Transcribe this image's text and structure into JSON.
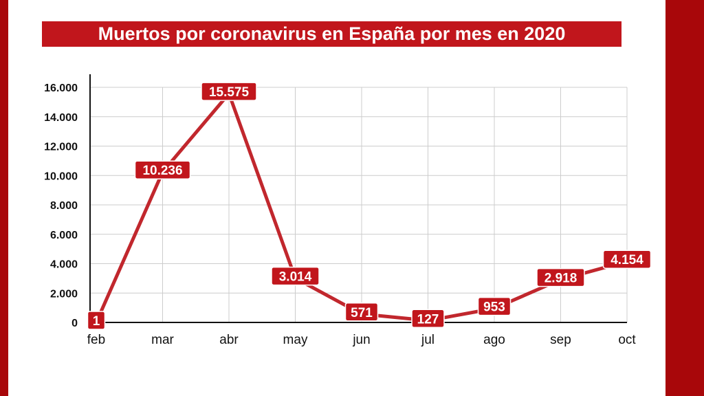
{
  "title": "Muertos por coronavirus en España por mes en 2020",
  "colors": {
    "background": "#a8070a",
    "accent": "#c1161c",
    "line": "#c1272d",
    "grid": "#cccccc",
    "text": "#111111"
  },
  "chart_data": {
    "type": "line",
    "title": "Muertos por coronavirus en España por mes en 2020",
    "xlabel": "",
    "ylabel": "",
    "categories": [
      "feb",
      "mar",
      "abr",
      "may",
      "jun",
      "jul",
      "ago",
      "sep",
      "oct"
    ],
    "values": [
      1,
      10236,
      15575,
      3014,
      571,
      127,
      953,
      2918,
      4154
    ],
    "data_labels": [
      "1",
      "10.236",
      "15.575",
      "3.014",
      "571",
      "127",
      "953",
      "2.918",
      "4.154"
    ],
    "ylim": [
      0,
      16000
    ],
    "yticks": [
      0,
      2000,
      4000,
      6000,
      8000,
      10000,
      12000,
      14000,
      16000
    ],
    "ytick_labels": [
      "0",
      "2.000",
      "4.000",
      "6.000",
      "8.000",
      "10.000",
      "12.000",
      "14.000",
      "16.000"
    ],
    "grid": true,
    "legend": "none"
  }
}
